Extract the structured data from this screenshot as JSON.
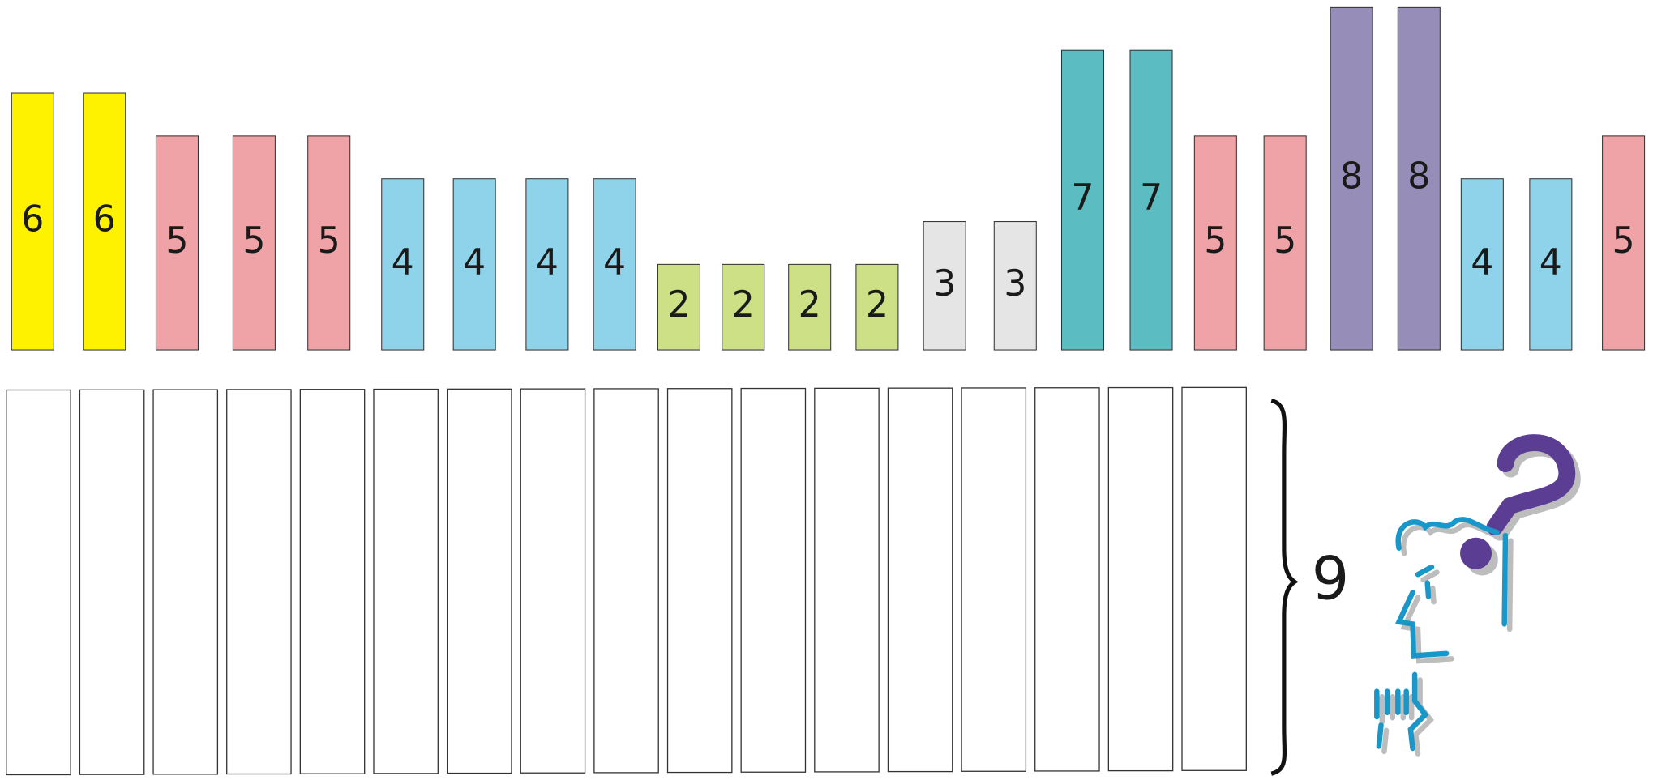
{
  "bars": [
    {
      "value": 6,
      "color": "#fff200"
    },
    {
      "value": 6,
      "color": "#fff200"
    },
    {
      "value": 5,
      "color": "#f0a3a6"
    },
    {
      "value": 5,
      "color": "#f0a3a6"
    },
    {
      "value": 5,
      "color": "#f0a3a6"
    },
    {
      "value": 4,
      "color": "#8fd3ea"
    },
    {
      "value": 4,
      "color": "#8fd3ea"
    },
    {
      "value": 4,
      "color": "#8fd3ea"
    },
    {
      "value": 4,
      "color": "#8fd3ea"
    },
    {
      "value": 2,
      "color": "#cde085"
    },
    {
      "value": 2,
      "color": "#cde085"
    },
    {
      "value": 2,
      "color": "#cde085"
    },
    {
      "value": 2,
      "color": "#cde085"
    },
    {
      "value": 3,
      "color": "#e5e5e5"
    },
    {
      "value": 3,
      "color": "#e5e5e5"
    },
    {
      "value": 7,
      "color": "#5bbdc2"
    },
    {
      "value": 7,
      "color": "#5bbdc2"
    },
    {
      "value": 5,
      "color": "#f0a3a6"
    },
    {
      "value": 5,
      "color": "#f0a3a6"
    },
    {
      "value": 8,
      "color": "#968eb9"
    },
    {
      "value": 8,
      "color": "#968eb9"
    },
    {
      "value": 4,
      "color": "#8fd3ea"
    },
    {
      "value": 4,
      "color": "#8fd3ea"
    },
    {
      "value": 5,
      "color": "#f0a3a6"
    }
  ],
  "brace_label": "9"
}
